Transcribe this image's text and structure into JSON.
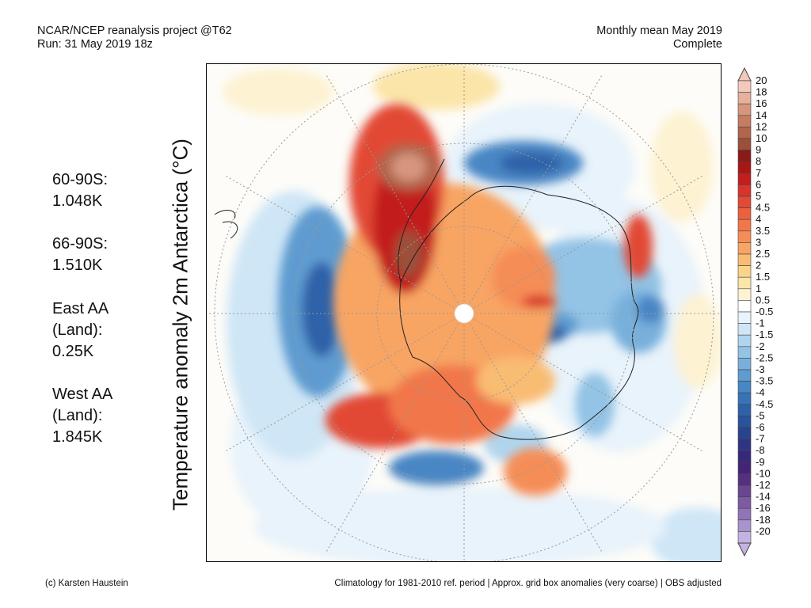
{
  "header": {
    "left_line1": "NCAR/NCEP reanalysis project @T62",
    "left_line2": "Run: 31 May 2019 18z",
    "right_line1": "Monthly mean May 2019",
    "right_line2": "Complete"
  },
  "y_label": "Temperature anomaly 2m Antarctica (°C)",
  "stats": [
    {
      "lines": [
        "60-90S:",
        " 1.048K"
      ]
    },
    {
      "lines": [
        "66-90S:",
        " 1.510K"
      ]
    },
    {
      "lines": [
        "East AA",
        " (Land):",
        " 0.25K"
      ]
    },
    {
      "lines": [
        "West AA",
        " (Land):",
        " 1.845K"
      ]
    }
  ],
  "colorbar": {
    "labels": [
      "20",
      "18",
      "16",
      "14",
      "12",
      "10",
      "9",
      "8",
      "7",
      "6",
      "5",
      "4.5",
      "4",
      "3.5",
      "3",
      "2.5",
      "2",
      "1.5",
      "1",
      "0.5",
      "-0.5",
      "-1",
      "-1.5",
      "-2",
      "-2.5",
      "-3",
      "-3.5",
      "-4",
      "-4.5",
      "-5",
      "-6",
      "-7",
      "-8",
      "-9",
      "-10",
      "-12",
      "-14",
      "-16",
      "-18",
      "-20"
    ],
    "colors": [
      "#f4c9bd",
      "#e6b09c",
      "#d6957d",
      "#c57c63",
      "#b1654c",
      "#9c4f3a",
      "#8b1a1a",
      "#a81616",
      "#c21e1e",
      "#d6342c",
      "#e24a34",
      "#eb6140",
      "#f1774b",
      "#f58d57",
      "#f8a463",
      "#f9bc73",
      "#fad48a",
      "#fbe5a8",
      "#fdf2d2",
      "#ffffff",
      "#e8f3fb",
      "#cfe6f6",
      "#b1d5ee",
      "#93c3e5",
      "#78b0db",
      "#5e9bd0",
      "#4886c4",
      "#3873b6",
      "#2d62a9",
      "#29539c",
      "#2a438f",
      "#2e3585",
      "#37287c",
      "#442478",
      "#56307f",
      "#6a4590",
      "#7d5aa2",
      "#9173b6",
      "#a993cc",
      "#c3b3e2"
    ]
  },
  "footer": {
    "left": "(c) Karsten Haustein",
    "right": "Climatology for 1981-2010 ref. period | Approx. grid box anomalies (very coarse) | OBS adjusted"
  }
}
